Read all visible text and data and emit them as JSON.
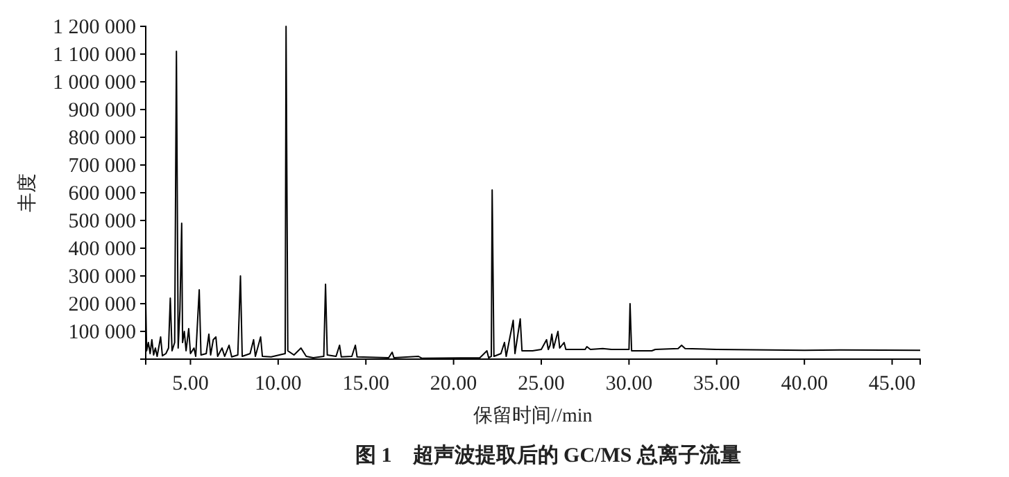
{
  "chart_data": {
    "type": "line",
    "title": "图 1　超声波提取后的 GC/MS 总离子流量",
    "xlabel": "保留时间//min",
    "ylabel": "丰度",
    "xlim": [
      2.45,
      46.6
    ],
    "xticks": [
      {
        "value": 5,
        "label": "5.00"
      },
      {
        "value": 10,
        "label": "10.00"
      },
      {
        "value": 15,
        "label": "15.00"
      },
      {
        "value": 20,
        "label": "20.00"
      },
      {
        "value": 25,
        "label": "25.00"
      },
      {
        "value": 30,
        "label": "30.00"
      },
      {
        "value": 35,
        "label": "35.00"
      },
      {
        "value": 40,
        "label": "40.00"
      },
      {
        "value": 45,
        "label": "45.00"
      }
    ],
    "ylim": [
      0,
      1200000
    ],
    "yticks": [
      {
        "value": 100000,
        "label": "100 000"
      },
      {
        "value": 200000,
        "label": "200 000"
      },
      {
        "value": 300000,
        "label": "300 000"
      },
      {
        "value": 400000,
        "label": "400 000"
      },
      {
        "value": 500000,
        "label": "500 000"
      },
      {
        "value": 600000,
        "label": "600 000"
      },
      {
        "value": 700000,
        "label": "700 000"
      },
      {
        "value": 800000,
        "label": "800 000"
      },
      {
        "value": 900000,
        "label": "900 000"
      },
      {
        "value": 1000000,
        "label": "1 000 000"
      },
      {
        "value": 1100000,
        "label": "1 100 000"
      },
      {
        "value": 1200000,
        "label": "1 200 000"
      }
    ],
    "grid": false,
    "marker": "none",
    "line_style": "solid",
    "series": [
      {
        "color": "#000000",
        "x": [
          2.45,
          2.5,
          2.6,
          2.7,
          2.8,
          2.9,
          3.0,
          3.1,
          3.3,
          3.4,
          3.6,
          3.75,
          3.85,
          3.95,
          4.1,
          4.2,
          4.3,
          4.4,
          4.5,
          4.55,
          4.65,
          4.75,
          4.9,
          5.0,
          5.2,
          5.3,
          5.5,
          5.6,
          5.9,
          6.05,
          6.15,
          6.3,
          6.45,
          6.55,
          6.8,
          6.95,
          7.2,
          7.35,
          7.7,
          7.85,
          7.95,
          8.4,
          8.6,
          8.7,
          9.0,
          9.1,
          9.6,
          10.4,
          10.45,
          10.55,
          10.9,
          11.3,
          11.6,
          12.0,
          12.6,
          12.7,
          12.8,
          13.3,
          13.5,
          13.6,
          14.2,
          14.4,
          14.5,
          16.3,
          16.5,
          16.6,
          18.0,
          18.2,
          21.5,
          21.9,
          22.0,
          22.15,
          22.2,
          22.3,
          22.7,
          22.9,
          23.0,
          23.4,
          23.5,
          23.8,
          23.9,
          24.5,
          25.0,
          25.3,
          25.4,
          25.5,
          25.6,
          25.7,
          25.95,
          26.05,
          26.3,
          26.4,
          27.5,
          27.6,
          27.8,
          28.5,
          29.0,
          30.0,
          30.06,
          30.15,
          31.3,
          31.5,
          32.8,
          33.0,
          33.2,
          35.0,
          40.0,
          42.0,
          46.6
        ],
        "values": [
          210000,
          30000,
          60000,
          20000,
          70000,
          15000,
          40000,
          10000,
          80000,
          12000,
          20000,
          40000,
          220000,
          30000,
          60000,
          1110000,
          40000,
          180000,
          490000,
          60000,
          100000,
          30000,
          110000,
          20000,
          40000,
          10000,
          250000,
          15000,
          20000,
          90000,
          15000,
          70000,
          80000,
          10000,
          40000,
          10000,
          50000,
          8000,
          15000,
          300000,
          10000,
          20000,
          70000,
          10000,
          80000,
          10000,
          8000,
          20000,
          1200000,
          30000,
          15000,
          40000,
          10000,
          5000,
          10000,
          270000,
          15000,
          10000,
          50000,
          8000,
          10000,
          50000,
          8000,
          5000,
          25000,
          5000,
          10000,
          3000,
          5000,
          30000,
          5000,
          10000,
          610000,
          10000,
          20000,
          60000,
          10000,
          140000,
          20000,
          145000,
          30000,
          30000,
          35000,
          70000,
          35000,
          50000,
          90000,
          40000,
          100000,
          40000,
          60000,
          35000,
          35000,
          45000,
          35000,
          38000,
          35000,
          35000,
          200000,
          30000,
          30000,
          35000,
          38000,
          50000,
          38000,
          35000,
          32000,
          33000,
          32000
        ]
      }
    ]
  }
}
